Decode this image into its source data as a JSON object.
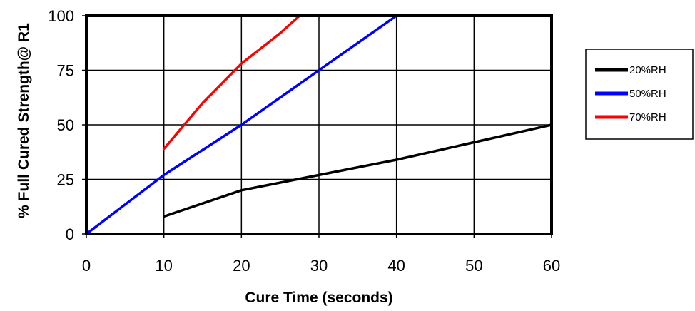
{
  "chart_data": {
    "type": "line",
    "title": "",
    "xlabel": "Cure Time (seconds)",
    "ylabel": "% Full Cured Strength@ R1",
    "xlim": [
      0,
      60
    ],
    "ylim": [
      0,
      100
    ],
    "x_ticks": [
      0,
      10,
      20,
      30,
      40,
      50,
      60
    ],
    "y_ticks": [
      0,
      25,
      50,
      75,
      100
    ],
    "grid": true,
    "legend_position": "right",
    "series": [
      {
        "name": "20%RH",
        "color": "#000000",
        "points": [
          [
            10,
            8
          ],
          [
            20,
            20
          ],
          [
            30,
            27
          ],
          [
            40,
            34
          ],
          [
            50,
            42
          ],
          [
            60,
            50
          ]
        ]
      },
      {
        "name": "50%RH",
        "color": "#0000ff",
        "points": [
          [
            0,
            0
          ],
          [
            10,
            27
          ],
          [
            20,
            50
          ],
          [
            30,
            75
          ],
          [
            40,
            100
          ]
        ]
      },
      {
        "name": "70%RH",
        "color": "#ff0000",
        "points": [
          [
            10,
            39
          ],
          [
            15,
            60
          ],
          [
            20,
            78
          ],
          [
            25,
            92
          ],
          [
            27.5,
            100
          ]
        ]
      }
    ]
  }
}
